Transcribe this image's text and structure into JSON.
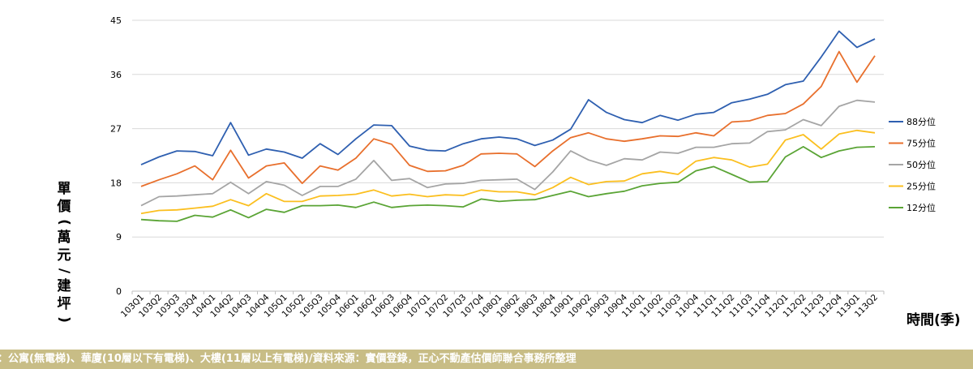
{
  "chart_data": {
    "type": "line",
    "ylabel": "單價(萬元/建坪)",
    "xlabel": "時間(季)",
    "ylim": [
      0,
      45
    ],
    "yticks": [
      "0",
      "9",
      "18",
      "27",
      "36",
      "45"
    ],
    "ytick_values": [
      0,
      9,
      18,
      27,
      36,
      45
    ],
    "grid": "horizontal",
    "legend_position": "right",
    "categories": [
      "103Q1",
      "103Q2",
      "103Q3",
      "103Q4",
      "104Q1",
      "104Q2",
      "104Q3",
      "104Q4",
      "105Q1",
      "105Q2",
      "105Q3",
      "105Q4",
      "106Q1",
      "106Q2",
      "106Q3",
      "106Q4",
      "107Q1",
      "107Q2",
      "107Q3",
      "107Q4",
      "108Q1",
      "108Q2",
      "108Q3",
      "108Q4",
      "109Q1",
      "109Q2",
      "109Q3",
      "109Q4",
      "110Q1",
      "110Q2",
      "110Q3",
      "110Q4",
      "111Q1",
      "111Q2",
      "111Q3",
      "111Q4",
      "112Q1",
      "112Q2",
      "112Q3",
      "112Q4",
      "113Q1",
      "113Q2"
    ],
    "series": [
      {
        "name": "88分位",
        "color": "#2e5fb0",
        "values": [
          21.0,
          22.3,
          23.3,
          23.2,
          22.5,
          28.0,
          22.6,
          23.6,
          23.1,
          22.1,
          24.5,
          22.7,
          25.3,
          27.6,
          27.5,
          24.1,
          23.4,
          23.3,
          24.5,
          25.3,
          25.6,
          25.3,
          24.2,
          25.1,
          26.9,
          31.8,
          29.7,
          28.5,
          28.0,
          29.2,
          28.4,
          29.4,
          29.7,
          31.3,
          31.9,
          32.7,
          34.3,
          34.9,
          38.9,
          43.2,
          40.5,
          41.9
        ]
      },
      {
        "name": "75分位",
        "color": "#e86f2c",
        "values": [
          17.4,
          18.5,
          19.5,
          20.8,
          18.5,
          23.4,
          18.8,
          20.8,
          21.3,
          17.9,
          20.8,
          20.1,
          22.1,
          25.3,
          24.4,
          20.9,
          19.9,
          20.0,
          20.9,
          22.8,
          22.9,
          22.8,
          20.7,
          23.3,
          25.5,
          26.3,
          25.3,
          24.9,
          25.3,
          25.8,
          25.7,
          26.3,
          25.8,
          28.1,
          28.3,
          29.2,
          29.5,
          31.1,
          34.0,
          39.8,
          34.7,
          39.1
        ]
      },
      {
        "name": "50分位",
        "color": "#a5a5a5",
        "values": [
          14.2,
          15.7,
          15.8,
          16.0,
          16.2,
          18.1,
          16.2,
          18.2,
          17.6,
          15.9,
          17.4,
          17.4,
          18.6,
          21.7,
          18.4,
          18.7,
          17.2,
          17.8,
          17.9,
          18.4,
          18.5,
          18.6,
          16.9,
          19.8,
          23.3,
          21.8,
          20.9,
          22.0,
          21.8,
          23.1,
          22.9,
          23.9,
          23.9,
          24.5,
          24.6,
          26.5,
          26.8,
          28.5,
          27.5,
          30.7,
          31.7,
          31.4
        ]
      },
      {
        "name": "25分位",
        "color": "#fbbf1f",
        "values": [
          12.9,
          13.4,
          13.5,
          13.8,
          14.1,
          15.2,
          14.2,
          16.2,
          14.9,
          14.9,
          15.8,
          15.9,
          16.1,
          16.8,
          15.8,
          16.1,
          15.7,
          16.0,
          15.9,
          16.8,
          16.5,
          16.5,
          16.0,
          17.2,
          18.9,
          17.7,
          18.2,
          18.3,
          19.5,
          19.9,
          19.4,
          21.6,
          22.2,
          21.8,
          20.6,
          21.1,
          25.1,
          26.0,
          23.6,
          26.1,
          26.7,
          26.3
        ]
      },
      {
        "name": "12分位",
        "color": "#5aa435",
        "values": [
          11.9,
          11.7,
          11.6,
          12.6,
          12.3,
          13.5,
          12.2,
          13.6,
          13.1,
          14.2,
          14.2,
          14.3,
          13.9,
          14.8,
          13.9,
          14.2,
          14.3,
          14.2,
          14.0,
          15.3,
          14.9,
          15.1,
          15.2,
          15.9,
          16.6,
          15.7,
          16.2,
          16.6,
          17.5,
          17.9,
          18.1,
          20.0,
          20.7,
          19.4,
          18.1,
          18.2,
          22.3,
          24.0,
          22.2,
          23.3,
          23.9,
          24.0
        ]
      }
    ]
  },
  "footer": {
    "note": "：公寓(無電梯)、華廈(10層以下有電梯)、大樓(11層以上有電梯)/資料來源：實價登錄，正心不動產估價師聯合事務所整理"
  },
  "labels": {
    "ylabel_chars": [
      "單",
      "價"
    ],
    "ylabel_paren_open": "(",
    "ylabel_mid_chars": [
      "萬",
      "元"
    ],
    "ylabel_slash": "/",
    "ylabel_end_chars": [
      "建",
      "坪"
    ],
    "ylabel_paren_close": ")",
    "xlabel": "時間(季)"
  }
}
